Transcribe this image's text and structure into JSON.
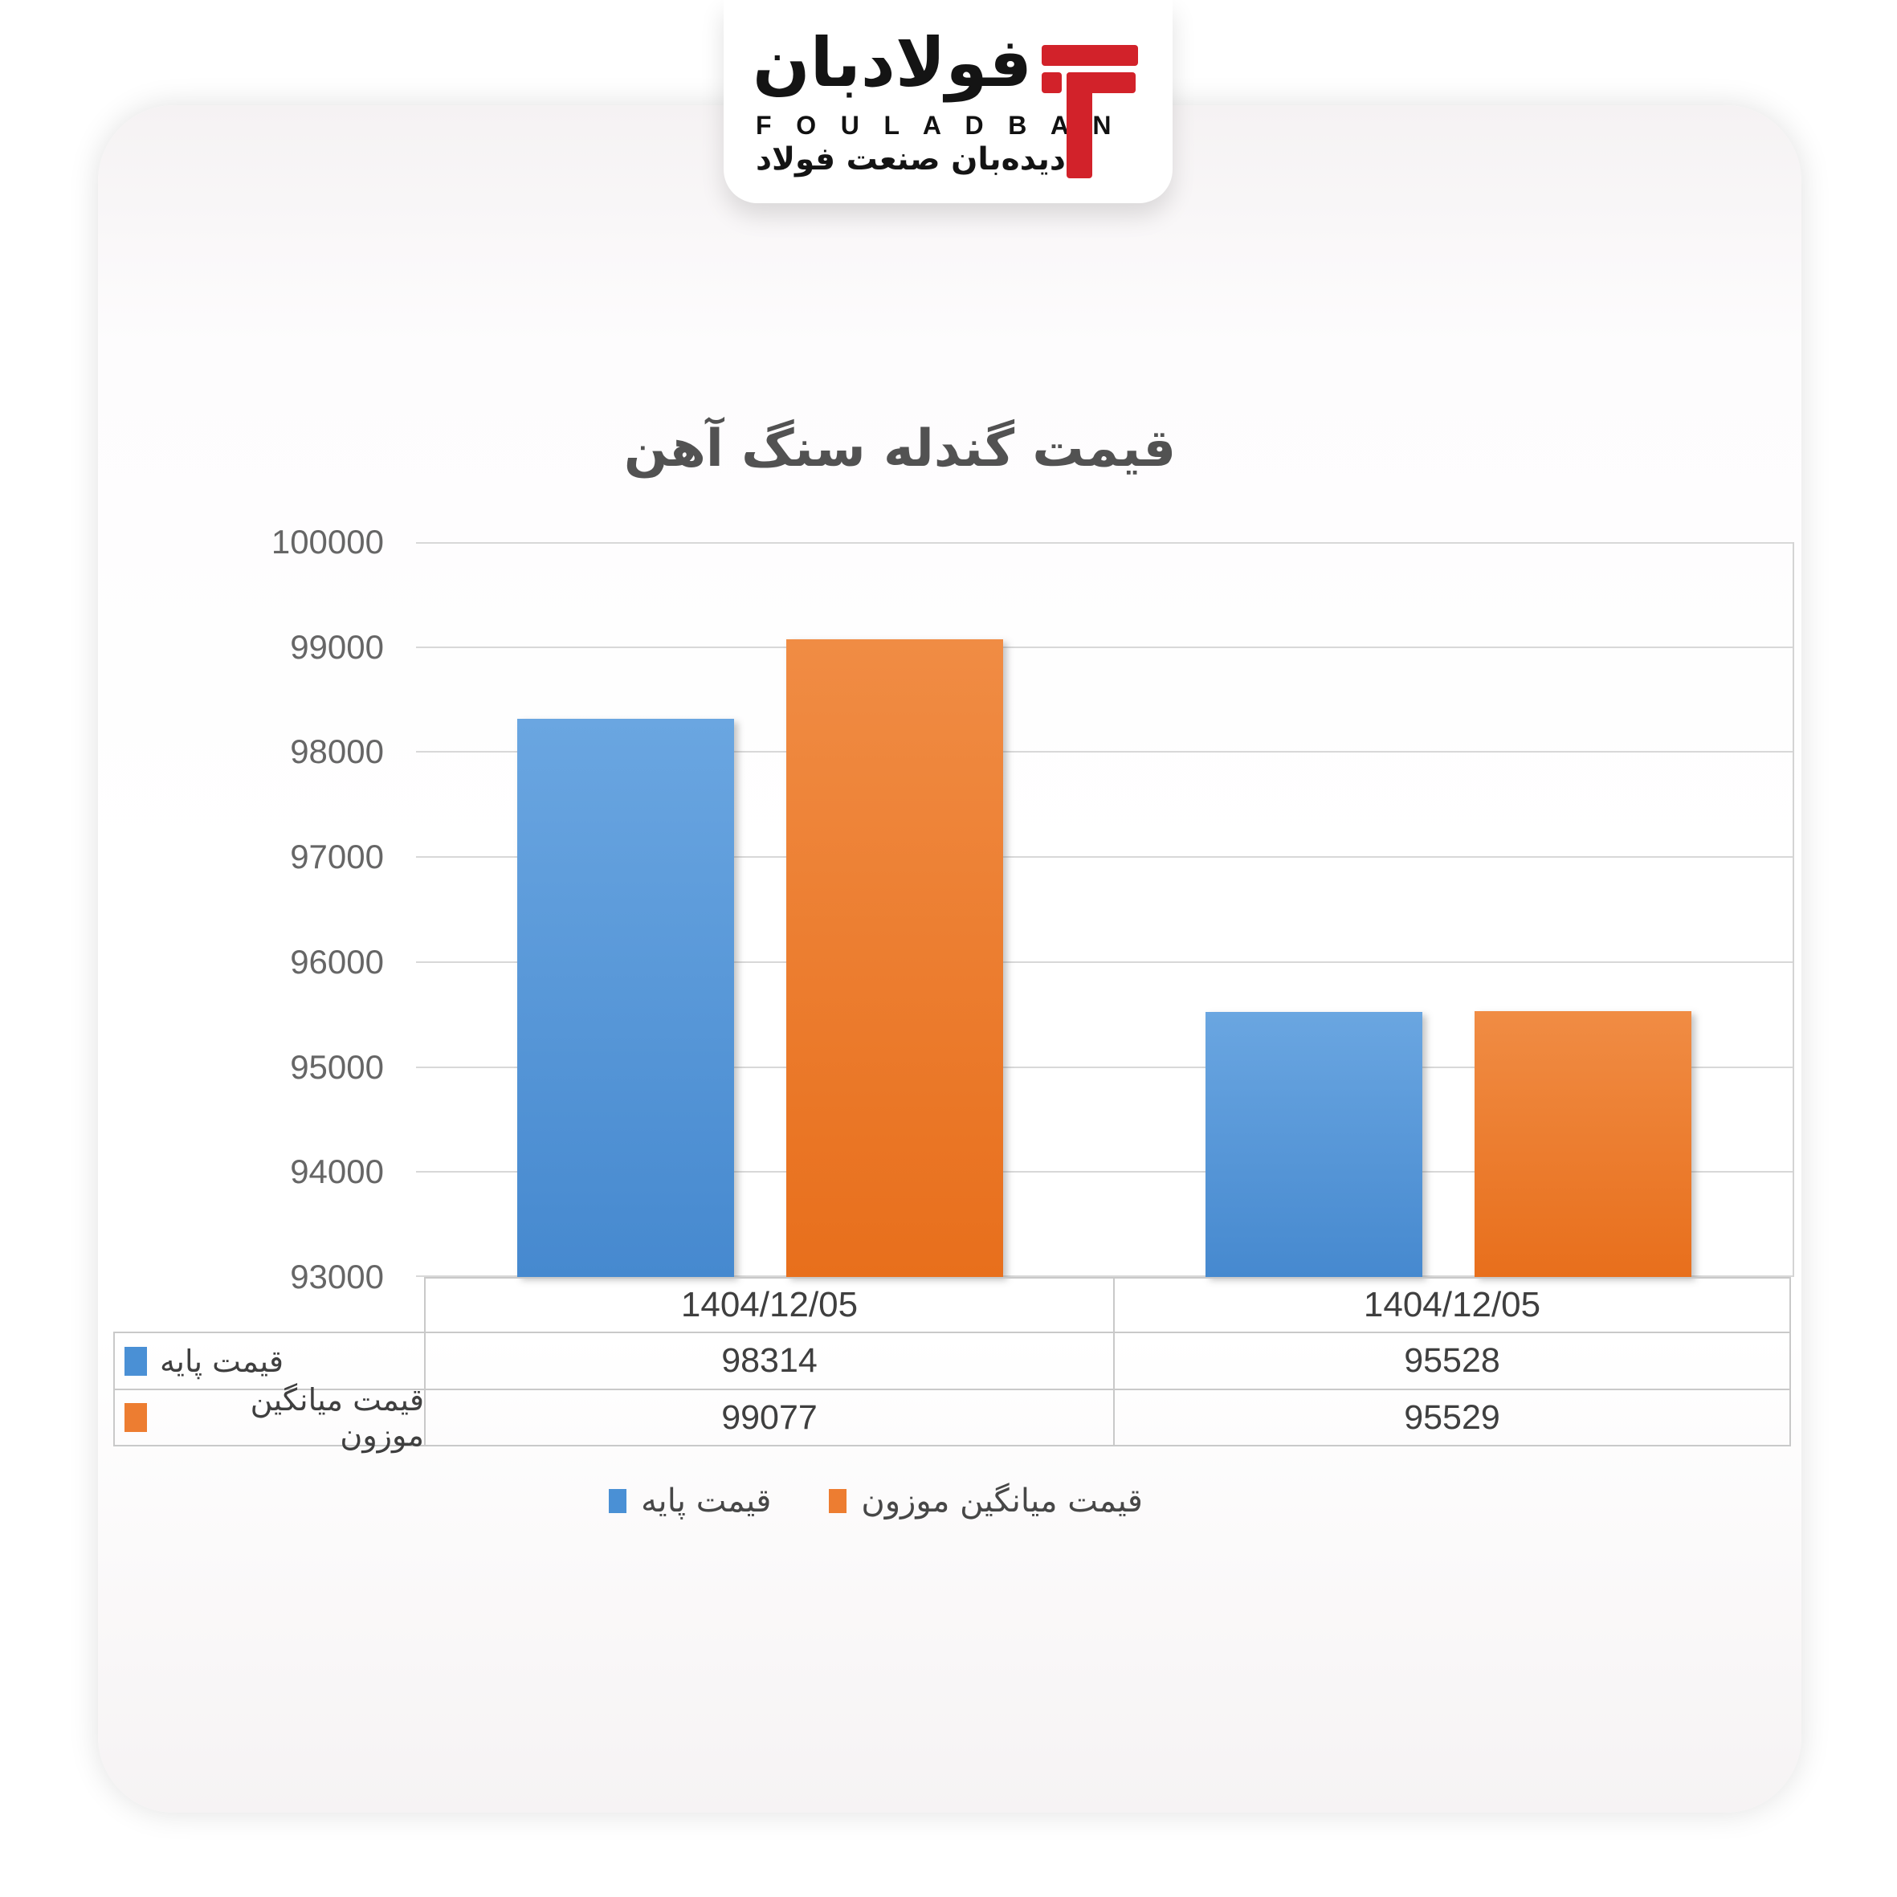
{
  "logo": {
    "brand_fa": "فولادبان",
    "brand_en": "F O U L A D B A N",
    "tagline_fa": "دیده‌بان صنعت فولاد",
    "mark_color": "#d2222a"
  },
  "chart_data": {
    "type": "bar",
    "title": "قیمت گندله سنگ آهن",
    "categories": [
      "1404/12/05",
      "1404/12/05"
    ],
    "series": [
      {
        "name": "قیمت پایه",
        "color": "#4a90d5",
        "color_light": "#6aa6e1",
        "color_dark": "#4689cf",
        "values": [
          98314,
          95528
        ]
      },
      {
        "name": "قیمت میانگین موزون",
        "color": "#ed7d31",
        "color_light": "#f08c44",
        "color_dark": "#e86f1c",
        "values": [
          99077,
          95529
        ]
      }
    ],
    "y_axis": {
      "min": 93000,
      "max": 100000,
      "step": 1000,
      "ticks": [
        100000,
        99000,
        98000,
        97000,
        96000,
        95000,
        94000,
        93000
      ]
    },
    "grid": true,
    "legend_position": "bottom",
    "data_table_shown": true,
    "gridline_color": "#d8d8d8"
  }
}
